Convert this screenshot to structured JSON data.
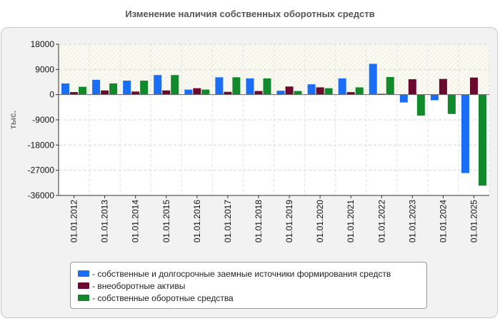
{
  "chart_data": {
    "type": "bar",
    "title": "Изменение наличия собственных оборотных средств",
    "ylabel": "тыс.",
    "xlabel": "",
    "ylim": [
      -36000,
      18000
    ],
    "yticks": [
      18000,
      9000,
      0,
      -9000,
      -18000,
      -27000,
      -36000
    ],
    "ytick_labels": [
      "18000",
      "9000",
      "0",
      "-9000",
      "-18000",
      "-27000",
      "-36000"
    ],
    "categories": [
      "01.01.2012",
      "01.01.2013",
      "01.01.2014",
      "01.01.2015",
      "01.01.2016",
      "01.01.2017",
      "01.01.2018",
      "01.01.2019",
      "01.01.2020",
      "01.01.2021",
      "01.01.2022",
      "01.01.2023",
      "01.01.2024",
      "01.01.2025"
    ],
    "series": [
      {
        "name": "собственные и долгосрочные заемные источники формирования средств",
        "color": "#1a6ef5",
        "values": [
          4000,
          5300,
          5000,
          7000,
          1800,
          6200,
          5800,
          1400,
          3700,
          5800,
          11000,
          -2800,
          -2000,
          -28000
        ]
      },
      {
        "name": "внеоборотные активы",
        "color": "#6b0a2e",
        "values": [
          900,
          1500,
          1100,
          1500,
          2300,
          1000,
          1300,
          2900,
          2600,
          900,
          300,
          5500,
          5600,
          6100
        ]
      },
      {
        "name": "собственные оборотные средства",
        "color": "#118a2c",
        "values": [
          2800,
          4000,
          5000,
          7000,
          1800,
          6200,
          5800,
          1300,
          2300,
          2600,
          6300,
          -7500,
          -6900,
          -32500
        ]
      }
    ],
    "legend_position": "bottom",
    "grid": true
  }
}
